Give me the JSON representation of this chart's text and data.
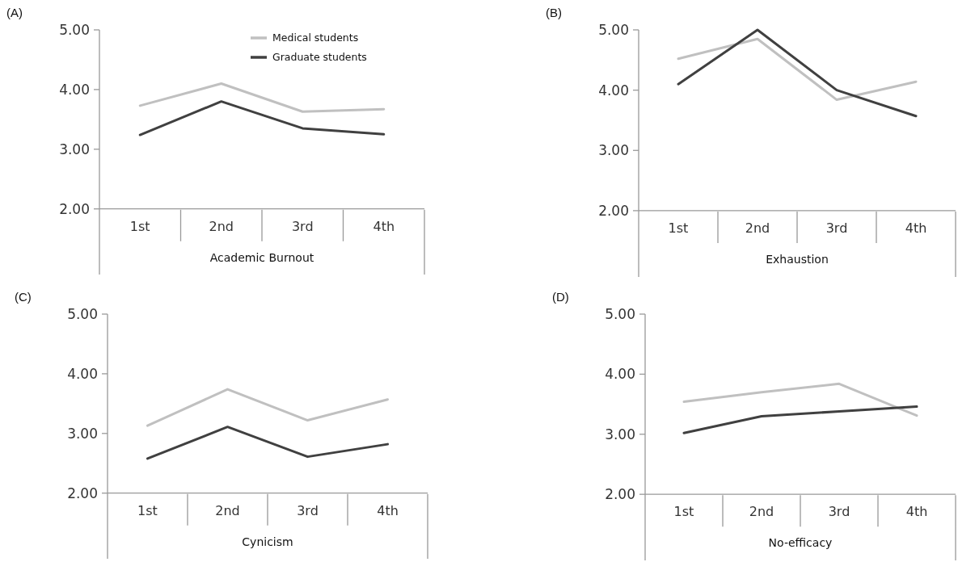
{
  "chart_data": [
    {
      "type": "line",
      "title": "(A)",
      "xlabel": "Academic Burnout",
      "categories": [
        "1st",
        "2nd",
        "3rd",
        "4th"
      ],
      "ylim": [
        0.9,
        5
      ],
      "yticks": [
        {
          "value": 2,
          "label": "2.00"
        },
        {
          "value": 3,
          "label": "3.00"
        },
        {
          "value": 4,
          "label": "4.00"
        },
        {
          "value": 5,
          "label": "5.00"
        }
      ],
      "legend": "top right",
      "series": [
        {
          "name": "Medical students",
          "color": "#c0c0c0",
          "values": [
            3.73,
            4.1,
            3.63,
            3.67
          ]
        },
        {
          "name": "Graduate students",
          "color": "#404040",
          "values": [
            3.24,
            3.8,
            3.35,
            3.25
          ]
        }
      ]
    },
    {
      "type": "line",
      "title": "(B)",
      "xlabel": "Exhaustion",
      "categories": [
        "1st",
        "2nd",
        "3rd",
        "4th"
      ],
      "ylim": [
        0.9,
        5
      ],
      "yticks": [
        {
          "value": 2,
          "label": "2.00"
        },
        {
          "value": 3,
          "label": "3.00"
        },
        {
          "value": 4,
          "label": "4.00"
        },
        {
          "value": 5,
          "label": "5.00"
        }
      ],
      "series": [
        {
          "color": "#c0c0c0",
          "values": [
            4.52,
            4.85,
            3.84,
            4.14
          ]
        },
        {
          "color": "#404040",
          "values": [
            4.1,
            5.0,
            4.0,
            3.57
          ]
        }
      ]
    },
    {
      "type": "line",
      "title": "(C)",
      "xlabel": "Cynicism",
      "categories": [
        "1st",
        "2nd",
        "3rd",
        "4th"
      ],
      "ylim": [
        0.9,
        5
      ],
      "yticks": [
        {
          "value": 2,
          "label": "2.00"
        },
        {
          "value": 3,
          "label": "3.00"
        },
        {
          "value": 4,
          "label": "4.00"
        },
        {
          "value": 5,
          "label": "5.00"
        }
      ],
      "series": [
        {
          "color": "#c0c0c0",
          "values": [
            3.13,
            3.74,
            3.22,
            3.57
          ]
        },
        {
          "color": "#404040",
          "values": [
            2.58,
            3.11,
            2.61,
            2.82
          ]
        }
      ]
    },
    {
      "type": "line",
      "title": "(D)",
      "xlabel": "No-efficacy",
      "categories": [
        "1st",
        "2nd",
        "3rd",
        "4th"
      ],
      "ylim": [
        0.9,
        5
      ],
      "yticks": [
        {
          "value": 2,
          "label": "2.00"
        },
        {
          "value": 3,
          "label": "3.00"
        },
        {
          "value": 4,
          "label": "4.00"
        },
        {
          "value": 5,
          "label": "5.00"
        }
      ],
      "series": [
        {
          "color": "#c0c0c0",
          "values": [
            3.54,
            3.7,
            3.84,
            3.31
          ]
        },
        {
          "color": "#404040",
          "values": [
            3.02,
            3.3,
            3.38,
            3.46
          ]
        }
      ]
    }
  ]
}
